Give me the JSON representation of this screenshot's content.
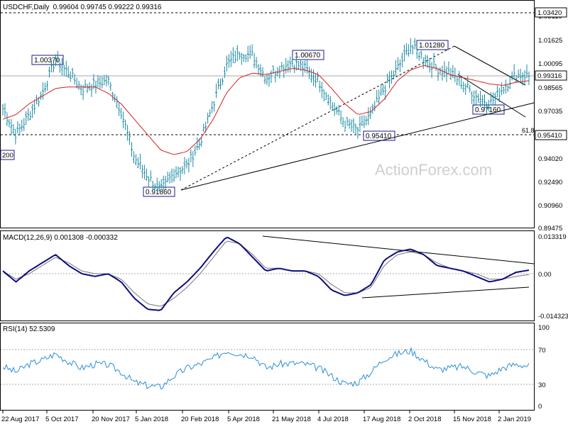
{
  "window": {
    "title": "USDCHF,Daily",
    "ohlc": "0.99604 0.99745 0.99222 0.99316"
  },
  "watermark": "ActionForex.com",
  "colors": {
    "price_bars": "#1a8aa3",
    "ma": "#d42020",
    "macd": "#0d0d80",
    "signal": "#777777",
    "rsi": "#2a8fd9",
    "lines": "#000000",
    "grid": "#a8a8a8",
    "label_box": "#1a1a8c"
  },
  "chart_data": [
    {
      "type": "line",
      "panel": "price",
      "title": "USDCHF,Daily",
      "ohlc_header": "0.99604 0.99745 0.99222 0.99316",
      "y_ticks": [
        "1.03110",
        "1.01625",
        "1.00095",
        "0.98565",
        "0.97035",
        "0.94020",
        "0.92490",
        "0.90960",
        "0.89475"
      ],
      "ylim": [
        0.8948,
        1.0311
      ],
      "current_price": "0.99316",
      "x": [
        "2017-08-22",
        "2017-09-05",
        "2017-09-19",
        "2017-10-05",
        "2017-10-20",
        "2017-11-06",
        "2017-11-20",
        "2017-12-05",
        "2017-12-20",
        "2018-01-05",
        "2018-01-15",
        "2018-01-25",
        "2018-02-05",
        "2018-02-20",
        "2018-03-05",
        "2018-03-20",
        "2018-04-05",
        "2018-04-20",
        "2018-05-05",
        "2018-05-21",
        "2018-06-05",
        "2018-06-20",
        "2018-07-04",
        "2018-07-20",
        "2018-08-05",
        "2018-08-17",
        "2018-08-27",
        "2018-09-05",
        "2018-09-20",
        "2018-10-02",
        "2018-10-15",
        "2018-10-25",
        "2018-11-05",
        "2018-11-15",
        "2018-11-25",
        "2018-12-05",
        "2018-12-15",
        "2018-12-25",
        "2019-01-02",
        "2019-01-10",
        "2019-01-15"
      ],
      "series": [
        {
          "values": [
            0.972,
            0.955,
            0.968,
            0.982,
            1.0037,
            0.995,
            0.985,
            0.988,
            0.99,
            0.97,
            0.94,
            0.928,
            0.9186,
            0.93,
            0.935,
            0.95,
            0.975,
            1.0,
            1.008,
            1.0067,
            0.992,
            0.998,
            1.002,
            0.998,
            0.99,
            0.975,
            0.962,
            0.958,
            0.968,
            0.985,
            0.998,
            1.0128,
            1.005,
            0.998,
            0.995,
            0.988,
            0.98,
            0.975,
            0.985,
            0.994,
            0.9932
          ]
        },
        {
          "name": "MA",
          "values": [
            0.965,
            0.968,
            0.975,
            0.98,
            0.985,
            0.986,
            0.986,
            0.986,
            0.982,
            0.975,
            0.965,
            0.955,
            0.945,
            0.942,
            0.944,
            0.952,
            0.965,
            0.982,
            0.992,
            0.995,
            0.994,
            0.996,
            0.998,
            0.997,
            0.994,
            0.985,
            0.975,
            0.968,
            0.97,
            0.978,
            0.99,
            0.997,
            1.0,
            0.998,
            0.994,
            0.992,
            0.99,
            0.988,
            0.987,
            0.989,
            0.99
          ]
        }
      ],
      "annotations": [
        "1.00370",
        "1.00670",
        "1.01280",
        "0.91860",
        "0.95410",
        "0.97160",
        "1.03420",
        "61.8",
        "0.95410",
        "0.99316",
        "200"
      ],
      "levels": {
        "upper": 1.0342,
        "fib_61_8": 0.9541,
        "current": 0.99316
      }
    },
    {
      "type": "line",
      "panel": "macd",
      "title": "MACD(12,26,9) 0.001308 -0.000332",
      "y_ticks": [
        "0.013319",
        "0.00",
        "-0.014323"
      ],
      "ylim": [
        -0.0165,
        0.0142
      ],
      "x": [
        "2017-08-22",
        "2017-09-05",
        "2017-09-19",
        "2017-10-05",
        "2017-10-20",
        "2017-11-06",
        "2017-11-20",
        "2017-12-05",
        "2017-12-20",
        "2018-01-05",
        "2018-01-15",
        "2018-01-25",
        "2018-02-05",
        "2018-02-20",
        "2018-03-05",
        "2018-03-20",
        "2018-04-05",
        "2018-04-20",
        "2018-05-05",
        "2018-05-21",
        "2018-06-05",
        "2018-06-20",
        "2018-07-04",
        "2018-07-20",
        "2018-08-05",
        "2018-08-17",
        "2018-08-27",
        "2018-09-05",
        "2018-09-20",
        "2018-10-02",
        "2018-10-15",
        "2018-10-25",
        "2018-11-05",
        "2018-11-15",
        "2018-11-25",
        "2018-12-05",
        "2018-12-15",
        "2018-12-25",
        "2019-01-02",
        "2019-01-10",
        "2019-01-15"
      ],
      "series": [
        {
          "name": "MACD",
          "values": [
            0.001,
            -0.003,
            0.001,
            0.004,
            0.007,
            0.003,
            0.0,
            -0.001,
            0.0,
            -0.003,
            -0.009,
            -0.013,
            -0.0135,
            -0.007,
            -0.003,
            0.002,
            0.008,
            0.0135,
            0.011,
            0.006,
            0.001,
            0.002,
            0.001,
            0.001,
            -0.001,
            -0.006,
            -0.008,
            -0.007,
            -0.004,
            0.005,
            0.008,
            0.009,
            0.007,
            0.003,
            0.002,
            0.001,
            -0.001,
            -0.003,
            -0.002,
            0.0005,
            0.0013
          ]
        },
        {
          "name": "Signal",
          "values": [
            0.001,
            -0.002,
            0.0,
            0.003,
            0.006,
            0.004,
            0.001,
            0.0,
            0.0,
            -0.002,
            -0.007,
            -0.011,
            -0.012,
            -0.009,
            -0.005,
            0.0,
            0.006,
            0.012,
            0.011,
            0.007,
            0.002,
            0.002,
            0.001,
            0.001,
            0.0,
            -0.004,
            -0.007,
            -0.007,
            -0.005,
            0.003,
            0.007,
            0.008,
            0.007,
            0.004,
            0.002,
            0.001,
            0.0,
            -0.002,
            -0.002,
            -0.001,
            -0.0003
          ]
        }
      ]
    },
    {
      "type": "line",
      "panel": "rsi",
      "title": "RSI(14) 52.5309",
      "y_ticks": [
        "100",
        "70",
        "30",
        "0"
      ],
      "ylim": [
        0,
        100
      ],
      "levels": [
        70,
        30
      ],
      "x": [
        "2017-08-22",
        "2017-09-05",
        "2017-09-19",
        "2017-10-05",
        "2017-10-20",
        "2017-11-06",
        "2017-11-20",
        "2017-12-05",
        "2017-12-20",
        "2018-01-05",
        "2018-01-15",
        "2018-01-25",
        "2018-02-05",
        "2018-02-20",
        "2018-03-05",
        "2018-03-20",
        "2018-04-05",
        "2018-04-20",
        "2018-05-05",
        "2018-05-21",
        "2018-06-05",
        "2018-06-20",
        "2018-07-04",
        "2018-07-20",
        "2018-08-05",
        "2018-08-17",
        "2018-08-27",
        "2018-09-05",
        "2018-09-20",
        "2018-10-02",
        "2018-10-15",
        "2018-10-25",
        "2018-11-05",
        "2018-11-15",
        "2018-11-25",
        "2018-12-05",
        "2018-12-15",
        "2018-12-25",
        "2019-01-02",
        "2019-01-10",
        "2019-01-15"
      ],
      "series": [
        {
          "name": "RSI",
          "values": [
            52,
            45,
            55,
            60,
            68,
            58,
            50,
            55,
            54,
            45,
            32,
            28,
            26,
            40,
            50,
            55,
            62,
            72,
            68,
            66,
            50,
            55,
            56,
            55,
            50,
            40,
            30,
            32,
            45,
            62,
            68,
            72,
            60,
            48,
            50,
            52,
            45,
            40,
            50,
            55,
            52.53
          ]
        }
      ],
      "x_tick_labels": [
        "22 Aug 2017",
        "5 Oct 2017",
        "20 Nov 2017",
        "5 Jan 2018",
        "20 Feb 2018",
        "5 Apr 2018",
        "21 May 2018",
        "4 Jul 2018",
        "17 Aug 2018",
        "2 Oct 2018",
        "15 Nov 2018",
        "2 Jan 2019"
      ]
    }
  ]
}
